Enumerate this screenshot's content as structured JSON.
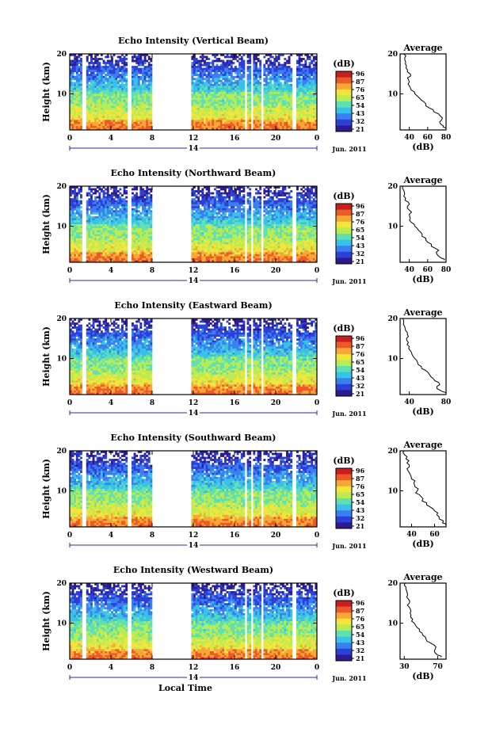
{
  "chart_data": [
    {
      "type": "heatmap",
      "title": "Echo Intensity (Vertical Beam)",
      "ylabel": "Height (km)",
      "x_ticks": [
        "0",
        "4",
        "8",
        "12",
        "16",
        "20",
        "0"
      ],
      "y_ticks": [
        "20",
        "10"
      ],
      "ylim": [
        1,
        20
      ],
      "xlim": [
        0,
        24
      ],
      "day_label": "14",
      "month_label": "Jun. 2011",
      "colorbar": {
        "unit": "(dB)",
        "ticks": [
          "96",
          "87",
          "76",
          "65",
          "54",
          "43",
          "32",
          "21"
        ]
      },
      "data_gaps_hours": [
        [
          1.2,
          1.6
        ],
        [
          5.6,
          6.0
        ],
        [
          8.0,
          11.7
        ],
        [
          17.0,
          17.2
        ],
        [
          17.6,
          17.8
        ],
        [
          18.6,
          18.8
        ],
        [
          21.6,
          22.0
        ]
      ],
      "average_profile": {
        "title": "Average",
        "xlabel": "(dB)",
        "x_ticks": [
          "40",
          "60",
          "80"
        ],
        "xlim": [
          30,
          80
        ],
        "y_ticks": [
          "20",
          "10"
        ],
        "height_km": [
          1.5,
          2,
          3,
          4,
          5,
          6,
          7,
          8,
          9,
          10,
          11,
          12,
          13,
          14,
          15,
          16,
          17,
          18,
          19,
          20
        ],
        "db": [
          80,
          77,
          73,
          76,
          72,
          66,
          58,
          56,
          51,
          46,
          42,
          40,
          40,
          38,
          41,
          38,
          37,
          36,
          35,
          34
        ]
      }
    },
    {
      "type": "heatmap",
      "title": "Echo Intensity (Northward Beam)",
      "ylabel": "Height (km)",
      "x_ticks": [
        "0",
        "4",
        "8",
        "12",
        "16",
        "20",
        "0"
      ],
      "y_ticks": [
        "20",
        "10"
      ],
      "ylim": [
        1,
        20
      ],
      "xlim": [
        0,
        24
      ],
      "day_label": "14",
      "month_label": "Jun. 2011",
      "colorbar": {
        "unit": "(dB)",
        "ticks": [
          "96",
          "87",
          "76",
          "65",
          "54",
          "43",
          "32",
          "21"
        ]
      },
      "data_gaps_hours": [
        [
          1.2,
          1.6
        ],
        [
          5.6,
          6.0
        ],
        [
          8.0,
          11.7
        ],
        [
          17.0,
          17.2
        ],
        [
          17.6,
          17.8
        ],
        [
          18.6,
          18.8
        ],
        [
          21.6,
          22.0
        ]
      ],
      "average_profile": {
        "title": "Average",
        "xlabel": "(dB)",
        "x_ticks": [
          "40",
          "60",
          "80"
        ],
        "xlim": [
          30,
          80
        ],
        "y_ticks": [
          "20",
          "10"
        ],
        "height_km": [
          1.5,
          2,
          3,
          4,
          5,
          6,
          7,
          8,
          9,
          10,
          11,
          12,
          13,
          14,
          15,
          16,
          17,
          18,
          19,
          20
        ],
        "db": [
          78,
          75,
          70,
          72,
          64,
          60,
          58,
          54,
          50,
          46,
          42,
          41,
          40,
          40,
          38,
          39,
          36,
          35,
          34,
          33
        ]
      }
    },
    {
      "type": "heatmap",
      "title": "Echo Intensity (Eastward Beam)",
      "ylabel": "Height (km)",
      "x_ticks": [
        "0",
        "4",
        "8",
        "12",
        "16",
        "20",
        "0"
      ],
      "y_ticks": [
        "20",
        "10"
      ],
      "ylim": [
        1,
        20
      ],
      "xlim": [
        0,
        24
      ],
      "day_label": "14",
      "month_label": "Jun. 2011",
      "colorbar": {
        "unit": "(dB)",
        "ticks": [
          "96",
          "87",
          "76",
          "65",
          "54",
          "43",
          "32",
          "21"
        ]
      },
      "data_gaps_hours": [
        [
          1.2,
          1.6
        ],
        [
          5.6,
          6.0
        ],
        [
          8.0,
          11.7
        ],
        [
          17.0,
          17.2
        ],
        [
          17.6,
          17.8
        ],
        [
          18.6,
          18.8
        ],
        [
          21.6,
          22.0
        ]
      ],
      "average_profile": {
        "title": "Average",
        "xlabel": "(dB)",
        "x_ticks": [
          "40",
          "80"
        ],
        "xlim": [
          30,
          80
        ],
        "y_ticks": [
          "20",
          "10"
        ],
        "height_km": [
          1.5,
          2,
          3,
          4,
          5,
          6,
          7,
          8,
          9,
          10,
          11,
          12,
          13,
          14,
          15,
          16,
          17,
          18,
          19,
          20
        ],
        "db": [
          80,
          74,
          70,
          72,
          66,
          62,
          58,
          53,
          49,
          46,
          43,
          41,
          40,
          39,
          37,
          38,
          36,
          35,
          34,
          33
        ]
      }
    },
    {
      "type": "heatmap",
      "title": "Echo Intensity (Southward Beam)",
      "ylabel": "Height (km)",
      "x_ticks": [
        "0",
        "4",
        "8",
        "12",
        "16",
        "20",
        "0"
      ],
      "y_ticks": [
        "20",
        "10"
      ],
      "ylim": [
        1,
        20
      ],
      "xlim": [
        0,
        24
      ],
      "day_label": "14",
      "month_label": "Jun. 2011",
      "colorbar": {
        "unit": "(dB)",
        "ticks": [
          "96",
          "87",
          "76",
          "65",
          "54",
          "43",
          "32",
          "21"
        ]
      },
      "data_gaps_hours": [
        [
          1.2,
          1.6
        ],
        [
          5.6,
          6.0
        ],
        [
          8.0,
          11.7
        ],
        [
          17.0,
          17.2
        ],
        [
          17.6,
          17.8
        ],
        [
          18.6,
          18.8
        ],
        [
          21.6,
          22.0
        ]
      ],
      "average_profile": {
        "title": "Average",
        "xlabel": "(dB)",
        "x_ticks": [
          "40",
          "60"
        ],
        "xlim": [
          30,
          70
        ],
        "y_ticks": [
          "20",
          "10"
        ],
        "height_km": [
          1.5,
          2,
          3,
          4,
          5,
          6,
          7,
          8,
          9,
          10,
          11,
          12,
          13,
          14,
          15,
          16,
          17,
          18,
          19,
          20
        ],
        "db": [
          70,
          67,
          64,
          62,
          60,
          56,
          53,
          50,
          47,
          45,
          43,
          42,
          40,
          39,
          37,
          38,
          36,
          35,
          34,
          33
        ]
      }
    },
    {
      "type": "heatmap",
      "title": "Echo Intensity (Westward Beam)",
      "ylabel": "Height (km)",
      "xlabel": "Local Time",
      "x_ticks": [
        "0",
        "4",
        "8",
        "12",
        "16",
        "20",
        "0"
      ],
      "y_ticks": [
        "20",
        "10"
      ],
      "ylim": [
        1,
        20
      ],
      "xlim": [
        0,
        24
      ],
      "day_label": "14",
      "month_label": "Jun. 2011",
      "colorbar": {
        "unit": "(dB)",
        "ticks": [
          "96",
          "87",
          "76",
          "65",
          "54",
          "43",
          "32",
          "21"
        ]
      },
      "data_gaps_hours": [
        [
          1.2,
          1.6
        ],
        [
          5.6,
          6.0
        ],
        [
          8.0,
          11.7
        ],
        [
          17.0,
          17.2
        ],
        [
          17.6,
          17.8
        ],
        [
          18.6,
          18.8
        ],
        [
          21.6,
          22.0
        ]
      ],
      "average_profile": {
        "title": "Average",
        "xlabel": "(dB)",
        "x_ticks": [
          "30",
          "70"
        ],
        "xlim": [
          25,
          80
        ],
        "y_ticks": [
          "20",
          "10"
        ],
        "height_km": [
          1.5,
          2,
          3,
          4,
          5,
          6,
          7,
          8,
          9,
          10,
          11,
          12,
          13,
          14,
          15,
          16,
          17,
          18,
          19,
          20
        ],
        "db": [
          74,
          70,
          66,
          68,
          62,
          56,
          52,
          48,
          45,
          42,
          40,
          38,
          38,
          36,
          36,
          35,
          34,
          33,
          32,
          31
        ]
      }
    }
  ],
  "colors": {
    "scale": [
      "#2b1b8f",
      "#2c3fd6",
      "#3a7ef0",
      "#38c2e8",
      "#5fe0b0",
      "#b8ec52",
      "#f4e53c",
      "#f7a735",
      "#ec5a2a",
      "#c81e1e"
    ]
  }
}
